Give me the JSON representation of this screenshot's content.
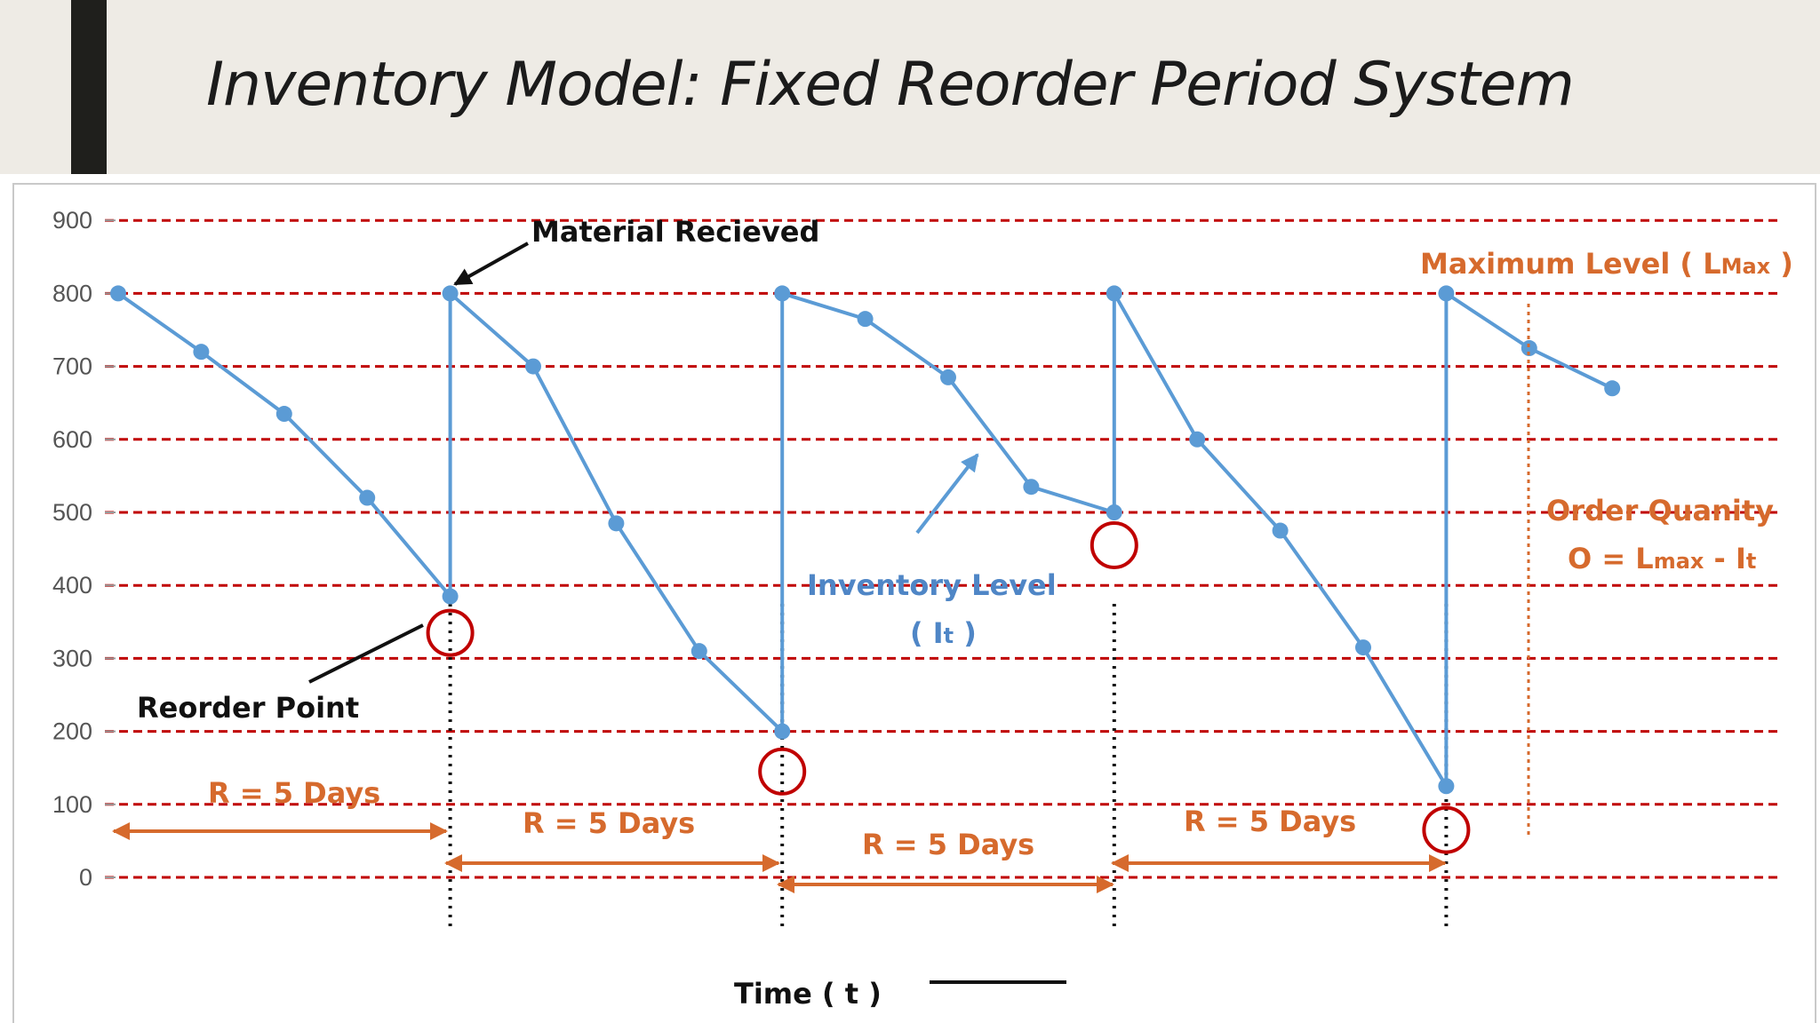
{
  "slide": {
    "title": "Inventory Model: Fixed Reorder Period System"
  },
  "colors": {
    "grid": "#c00000",
    "series": "#5b9bd5",
    "annotation_orange": "#d66a2d",
    "circle": "#c00000",
    "slide_bar": "#1f1f1c"
  },
  "chart_data": {
    "type": "line",
    "title": "",
    "xlabel": "Time ( t )",
    "ylabel": "",
    "ylim": [
      0,
      900
    ],
    "yticks": [
      0,
      100,
      200,
      300,
      400,
      500,
      600,
      700,
      800,
      900
    ],
    "grid": true,
    "series": [
      {
        "values": [
          {
            "x": 0,
            "y": 800
          },
          {
            "x": 1,
            "y": 720
          },
          {
            "x": 2,
            "y": 635
          },
          {
            "x": 3,
            "y": 520
          },
          {
            "x": 4,
            "y": 385
          },
          {
            "x": 4,
            "y": 800
          },
          {
            "x": 5,
            "y": 700
          },
          {
            "x": 6,
            "y": 485
          },
          {
            "x": 7,
            "y": 310
          },
          {
            "x": 8,
            "y": 200
          },
          {
            "x": 8,
            "y": 800
          },
          {
            "x": 9,
            "y": 765
          },
          {
            "x": 10,
            "y": 685
          },
          {
            "x": 11,
            "y": 535
          },
          {
            "x": 12,
            "y": 500
          },
          {
            "x": 12,
            "y": 800
          },
          {
            "x": 13,
            "y": 600
          },
          {
            "x": 14,
            "y": 475
          },
          {
            "x": 15,
            "y": 315
          },
          {
            "x": 16,
            "y": 125
          },
          {
            "x": 16,
            "y": 800
          },
          {
            "x": 17,
            "y": 725
          },
          {
            "x": 18,
            "y": 670
          }
        ]
      }
    ],
    "review_points_x": [
      4,
      8,
      12,
      16
    ],
    "annotations": {
      "material_received": "Material Recieved",
      "reorder_point": "Reorder Point",
      "maximum_level": "Maximum Level ( L",
      "maximum_level_sub": "Max",
      "maximum_level_close": " )",
      "inventory_level": "Inventory  Level",
      "inventory_level_symbol_open": "( I",
      "inventory_level_symbol_sub": "t",
      "inventory_level_symbol_close": " )",
      "order_quantity": "Order Quanity",
      "order_formula_a": "O = L",
      "order_formula_b": "max",
      "order_formula_c": " - I",
      "order_formula_d": "t",
      "period_labels": [
        "R = 5 Days",
        "R = 5 Days",
        "R = 5 Days",
        "R = 5 Days"
      ]
    }
  }
}
